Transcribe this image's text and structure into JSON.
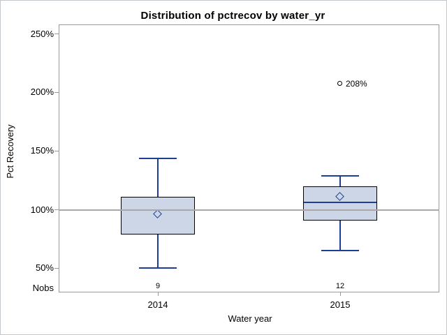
{
  "title": "Distribution of pctrecov by water_yr",
  "y_axis": {
    "label": "Pct Recovery",
    "ticks": [
      "250%",
      "200%",
      "150%",
      "100%",
      "50%"
    ],
    "nobs_label": "Nobs"
  },
  "x_axis": {
    "label": "Water year",
    "ticks": [
      "2014",
      "2015"
    ]
  },
  "nobs_values": [
    "9",
    "12"
  ],
  "colors": {
    "box_fill": "#ccd6e6",
    "box_border": "#000000",
    "line_blue": "#1e3d95",
    "reference_line": "#a8a8a8",
    "axis_gray": "#9a9a9a",
    "outlier_stroke": "#000000"
  },
  "chart_data": {
    "type": "box",
    "title": "Distribution of pctrecov by water_yr",
    "xlabel": "Water year",
    "ylabel": "Pct Recovery",
    "ylim": [
      30,
      260
    ],
    "y_tick_values": [
      50,
      100,
      150,
      200,
      250
    ],
    "y_unit": "%",
    "grid": false,
    "reference_line": 100,
    "categories": [
      "2014",
      "2015"
    ],
    "series": [
      {
        "category": "2014",
        "n": 9,
        "whisker_low": 50,
        "q1": 79,
        "median": 100,
        "q3": 111,
        "whisker_high": 144,
        "mean": 96,
        "outliers": []
      },
      {
        "category": "2015",
        "n": 12,
        "whisker_low": 65,
        "q1": 91,
        "median": 106,
        "q3": 120,
        "whisker_high": 129,
        "mean": 111,
        "outliers": [
          {
            "value": 208,
            "label": "208%"
          }
        ]
      }
    ]
  }
}
